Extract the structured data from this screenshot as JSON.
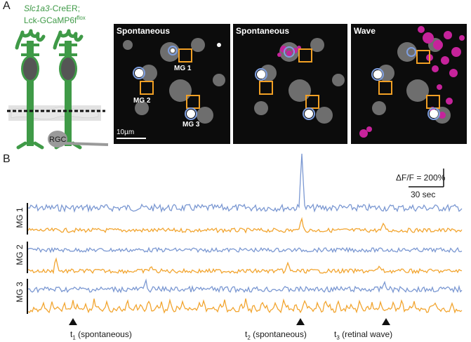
{
  "panel_a": {
    "letter": "A",
    "genotype_line1": "Slc1a3",
    "genotype_line1_suffix": "-CreER;",
    "genotype_line2": "Lck-GCaMP6f",
    "genotype_line2_sup": "flox",
    "rgc_label": "RGC",
    "images": [
      {
        "title": "Spontaneous"
      },
      {
        "title": "Spontaneous"
      },
      {
        "title": "Wave"
      }
    ],
    "cell_labels": [
      "MG 1",
      "MG 2",
      "MG 3"
    ],
    "scale_bar": "10µm"
  },
  "panel_b": {
    "letter": "B",
    "scale_dff": "ΔF/F = 200%",
    "scale_time": "30 sec",
    "row_labels": [
      "MG 1",
      "MG 2",
      "MG 3"
    ],
    "events": [
      {
        "t": "t",
        "sub": "1",
        "text": " (spontaneous)"
      },
      {
        "t": "t",
        "sub": "2",
        "text": " (spontaneous)"
      },
      {
        "t": "t",
        "sub": "3",
        "text": " (retinal wave)"
      }
    ]
  },
  "colors": {
    "blue_trace": "#7b98d2",
    "orange_trace": "#f2a530",
    "magenta": "#c6239b",
    "cell_green": "#3f9a47",
    "roi_orange": "#f2a024",
    "roi_blue": "#7f9fe0"
  }
}
